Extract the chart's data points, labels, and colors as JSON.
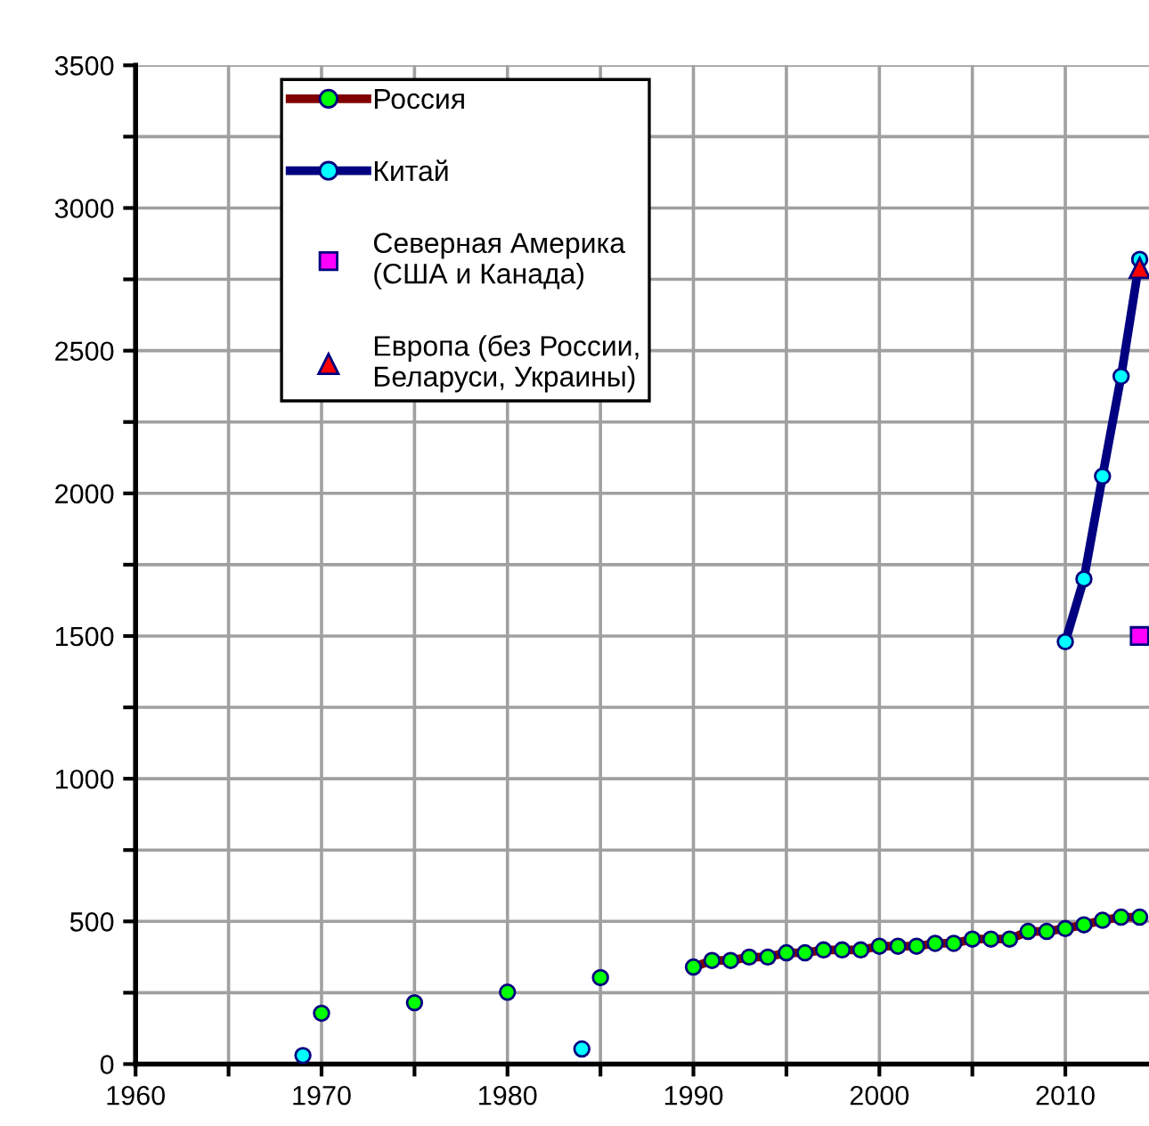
{
  "chart_data": {
    "type": "line",
    "xlim": [
      1960,
      2014.5
    ],
    "ylim": [
      0,
      3500
    ],
    "xticks": [
      1960,
      {
        "value": 1965,
        "label": null
      },
      1970,
      {
        "value": 1975,
        "label": null
      },
      1980,
      {
        "value": 1985,
        "label": null
      },
      1990,
      {
        "value": 1995,
        "label": null
      },
      2000,
      {
        "value": 2005,
        "label": null
      },
      2010
    ],
    "yticks": [
      0,
      {
        "value": 250,
        "label": null
      },
      500,
      {
        "value": 750,
        "label": null
      },
      1000,
      {
        "value": 1250,
        "label": null
      },
      1500,
      {
        "value": 1750,
        "label": null
      },
      2000,
      {
        "value": 2250,
        "label": null
      },
      2500,
      {
        "value": 2750,
        "label": null
      },
      3000,
      {
        "value": 3250,
        "label": null
      },
      3500
    ],
    "grid": true,
    "legend": "top left",
    "marker": "circle",
    "line_style": "solid",
    "series": [
      {
        "name": "Россия",
        "color": "#800000",
        "colors": [
          "#00ff00",
          "#00ff00",
          "#00ff00",
          "#00ff00",
          "#00ff00",
          "#00ff00",
          "#00ff00",
          "#00ff00",
          "#00ff00",
          "#00ff00",
          "#00ff00",
          "#00ff00",
          "#00ff00",
          "#00ff00",
          "#00ff00",
          "#00ff00",
          "#00ff00",
          "#00ff00",
          "#00ff00",
          "#00ff00",
          "#00ff00",
          "#00ff00",
          "#00ff00",
          "#00ff00",
          "#00ff00",
          "#00ff00",
          "#00ff00",
          "#00ff00",
          "#00ff00",
          "#00ff00",
          "#00ff00",
          "#00ff00",
          "#00ff00"
        ],
        "x": [
          1970,
          1971,
          1975,
          1976,
          1980,
          1981,
          1985,
          1986,
          1990,
          1991,
          1992,
          1993,
          1994,
          1995,
          1996,
          1997,
          1998,
          1999,
          2000,
          2001,
          2002,
          2003,
          2004,
          2005,
          2006,
          2007,
          2008,
          2009,
          2010,
          2011,
          2012,
          2013,
          2014
        ],
        "values": [
          178,
          null,
          215,
          null,
          252,
          null,
          303,
          null,
          340,
          363,
          363,
          375,
          375,
          390,
          390,
          400,
          400,
          400,
          413,
          413,
          413,
          423,
          423,
          438,
          438,
          438,
          465,
          465,
          475,
          488,
          504,
          515,
          515
        ]
      },
      {
        "name": "Китай",
        "color": "#000080",
        "colors": [
          "#00ffff",
          "#00ffff",
          "#00ffff",
          "#00ffff",
          "#00ffff",
          "#00ffff",
          "#00ffff",
          "#00ffff",
          "#00ffff"
        ],
        "x": [
          1969,
          1970,
          1984,
          1985,
          2010,
          2011,
          2012,
          2013,
          2014
        ],
        "values": [
          30,
          null,
          53,
          null,
          1480,
          1700,
          2060,
          2410,
          2820
        ]
      },
      {
        "name": "Северная Америка\n(США и Канада)",
        "type": "scatter",
        "marker": "square",
        "color": "#ff00ff",
        "x": [
          2014
        ],
        "values": [
          1500
        ]
      },
      {
        "name": "Европа (без России,\nБеларуси, Украины)",
        "type": "scatter",
        "marker": "triangle",
        "color": "#ff0000",
        "x": [
          2014
        ],
        "values": [
          2790
        ]
      }
    ]
  }
}
